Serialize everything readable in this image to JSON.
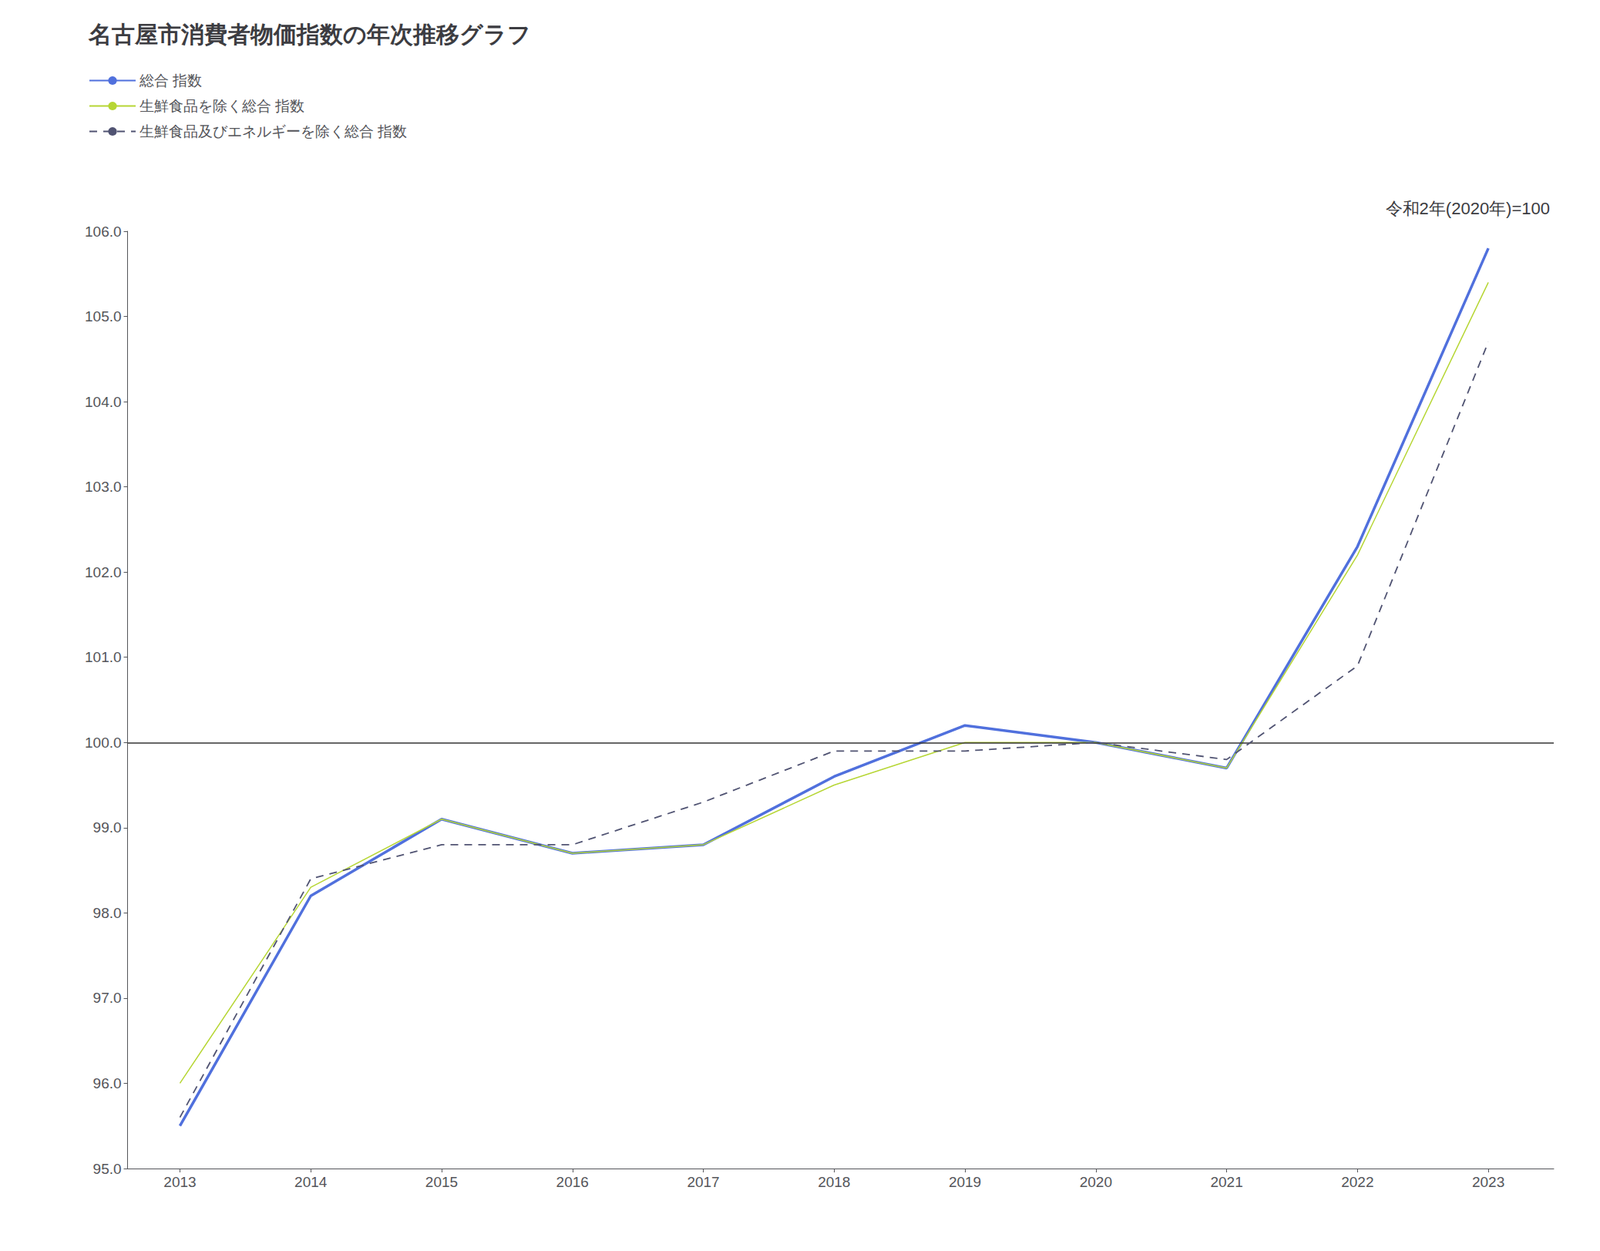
{
  "chart_data": {
    "type": "line",
    "title": "名古屋市消費者物価指数の年次推移グラフ",
    "annotation": "令和2年(2020年)=100",
    "x": [
      2013,
      2014,
      2015,
      2016,
      2017,
      2018,
      2019,
      2020,
      2021,
      2022,
      2023
    ],
    "series": [
      {
        "name": "総合 指数",
        "values": [
          95.5,
          98.2,
          99.1,
          98.7,
          98.8,
          99.6,
          100.2,
          100.0,
          99.7,
          102.3,
          105.8
        ],
        "line_style": "solid"
      },
      {
        "name": "生鮮食品を除く総合 指数",
        "values": [
          96.0,
          98.3,
          99.1,
          98.7,
          98.8,
          99.5,
          100.0,
          100.0,
          99.7,
          102.2,
          105.4
        ],
        "line_style": "solid"
      },
      {
        "name": "生鮮食品及びエネルギーを除く総合 指数",
        "values": [
          95.6,
          98.4,
          98.8,
          98.8,
          99.3,
          99.9,
          99.9,
          100.0,
          99.8,
          100.9,
          104.7
        ],
        "line_style": "dashed"
      }
    ],
    "xlim": [
      2012.6,
      2023.5
    ],
    "xticks": [
      2013,
      2014,
      2015,
      2016,
      2017,
      2018,
      2019,
      2020,
      2021,
      2022,
      2023
    ],
    "ylim": [
      95.0,
      106.0
    ],
    "yticks": [
      {
        "value": 95,
        "label": "95.0"
      },
      {
        "value": 96,
        "label": "96.0"
      },
      {
        "value": 97,
        "label": "97.0"
      },
      {
        "value": 98,
        "label": "98.0"
      },
      {
        "value": 99,
        "label": "99.0"
      },
      {
        "value": 100,
        "label": "100.0"
      },
      {
        "value": 101,
        "label": "101.0"
      },
      {
        "value": 102,
        "label": "102.0"
      },
      {
        "value": 103,
        "label": "103.0"
      },
      {
        "value": 104,
        "label": "104.0"
      },
      {
        "value": 105,
        "label": "105.0"
      },
      {
        "value": 106,
        "label": "106.0"
      }
    ],
    "hlines": [
      100.0
    ],
    "grid": false,
    "legend": "upper left",
    "marker": "none"
  }
}
